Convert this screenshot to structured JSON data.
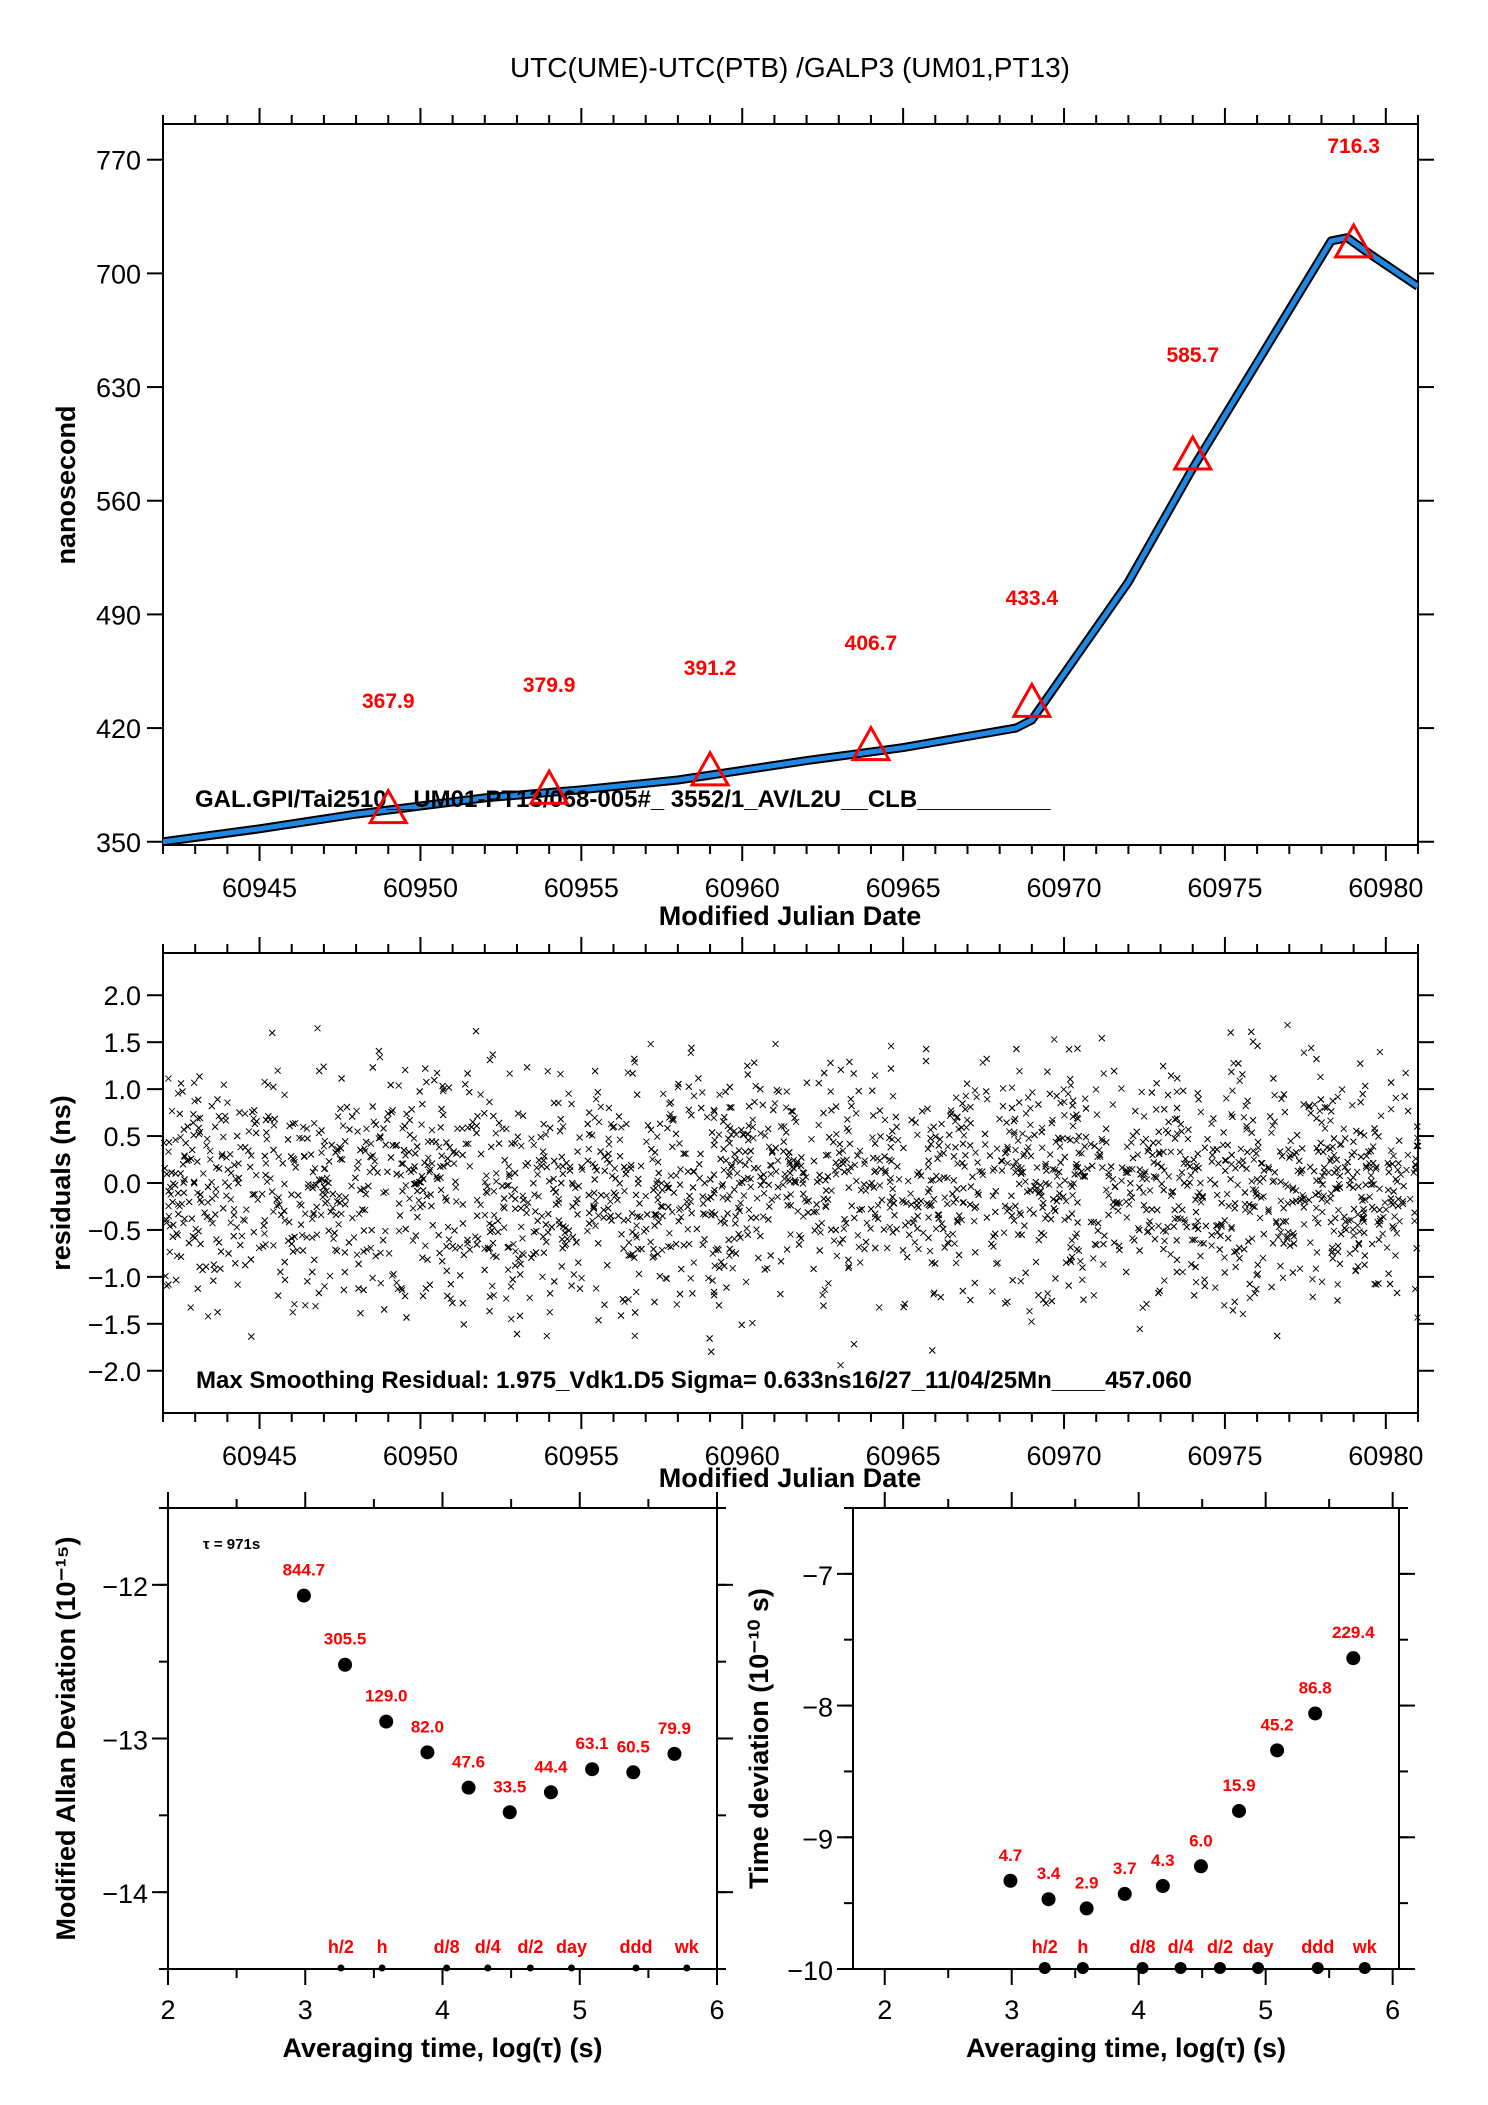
{
  "title": "UTC(UME)-UTC(PTB)  /GALP3  (UM01,PT13)",
  "colors": {
    "series_line": "#1e88e5",
    "marker": "#ff0000",
    "label": "#ff0000",
    "axis": "#000000"
  },
  "chart_data": [
    {
      "id": "time-offset",
      "type": "line",
      "title": "UTC(UME)-UTC(PTB)  /GALP3  (UM01,PT13)",
      "xlabel": "Modified Julian Date",
      "ylabel": "nanosecond",
      "xlim": [
        60942,
        60981
      ],
      "ylim": [
        348,
        792
      ],
      "xticks": [
        60945,
        60950,
        60955,
        60960,
        60965,
        60970,
        60975,
        60980
      ],
      "yticks": [
        350,
        420,
        490,
        560,
        630,
        700,
        770
      ],
      "annotation": "GAL.GPI/Tai2510__UM01-PT13/068-005#_  3552/1_AV/L2U__CLB__________",
      "series": [
        {
          "name": "smoothed",
          "x": [
            60942,
            60945,
            60948,
            60950,
            60952,
            60955,
            60958,
            60960,
            60962,
            60965,
            60968.5,
            60969,
            60972,
            60974,
            60976,
            60978.3,
            60978.8,
            60979.5,
            60981
          ],
          "y": [
            350,
            358,
            367,
            372,
            377,
            382,
            388,
            394,
            400,
            408,
            420,
            425,
            510,
            580,
            645,
            720,
            722,
            712,
            692
          ]
        }
      ],
      "markers": [
        {
          "x": 60949,
          "y": 367.9,
          "label": "367.9"
        },
        {
          "x": 60954,
          "y": 379.9,
          "label": "379.9"
        },
        {
          "x": 60959,
          "y": 391.2,
          "label": "391.2"
        },
        {
          "x": 60964,
          "y": 406.7,
          "label": "406.7"
        },
        {
          "x": 60969,
          "y": 433.4,
          "label": "433.4"
        },
        {
          "x": 60974,
          "y": 585.7,
          "label": "585.7"
        },
        {
          "x": 60979,
          "y": 716.3,
          "label": "716.3"
        }
      ],
      "grid": false
    },
    {
      "id": "residuals",
      "type": "scatter",
      "xlabel": "Modified Julian Date",
      "ylabel": "residuals (ns)",
      "xlim": [
        60942,
        60981
      ],
      "ylim": [
        -2.45,
        2.45
      ],
      "xticks": [
        60945,
        60950,
        60955,
        60960,
        60965,
        60970,
        60975,
        60980
      ],
      "yticks": [
        -2.0,
        -1.5,
        -1.0,
        -0.5,
        0.0,
        0.5,
        1.0,
        1.5,
        2.0
      ],
      "ytick_labels": [
        "−2.0",
        "−1.5",
        "−1.0",
        "−0.5",
        "0.0",
        "0.5",
        "1.0",
        "1.5",
        "2.0"
      ],
      "annotation": "Max Smoothing Residual: 1.975_Vdk1.D5  Sigma= 0.633ns16/27_11/04/25Mn____457.060",
      "summary": {
        "max_residual_ns": 1.975,
        "sigma_ns": 0.633,
        "n_points_approx": 3700,
        "x_range": [
          60942,
          60981
        ]
      },
      "marker": "x",
      "grid": false
    },
    {
      "id": "mod-allan-deviation",
      "type": "scatter",
      "xlabel": "Averaging time, log(τ) (s)",
      "ylabel": "Modified Allan Deviation (10⁻¹⁵)",
      "xlim": [
        2,
        6
      ],
      "ylim": [
        -14.5,
        -11.5
      ],
      "xticks": [
        2,
        3,
        4,
        5,
        6
      ],
      "yticks": [
        -14,
        -13,
        -12
      ],
      "ytick_labels": [
        "−14",
        "−13",
        "−12"
      ],
      "tau0_label": "τ = 971s",
      "points": [
        {
          "x": 2.99,
          "y": -12.07,
          "label": "844.7"
        },
        {
          "x": 3.29,
          "y": -12.52,
          "label": "305.5"
        },
        {
          "x": 3.59,
          "y": -12.89,
          "label": "129.0"
        },
        {
          "x": 3.89,
          "y": -13.09,
          "label": "82.0"
        },
        {
          "x": 4.19,
          "y": -13.32,
          "label": "47.6"
        },
        {
          "x": 4.49,
          "y": -13.48,
          "label": "33.5"
        },
        {
          "x": 4.79,
          "y": -13.35,
          "label": "44.4"
        },
        {
          "x": 5.09,
          "y": -13.2,
          "label": "63.1"
        },
        {
          "x": 5.39,
          "y": -13.22,
          "label": "60.5"
        },
        {
          "x": 5.69,
          "y": -13.1,
          "label": "79.9"
        }
      ],
      "time_markers": [
        {
          "x": 3.26,
          "label": "h/2"
        },
        {
          "x": 3.56,
          "label": "h"
        },
        {
          "x": 4.03,
          "label": "d/8"
        },
        {
          "x": 4.33,
          "label": "d/4"
        },
        {
          "x": 4.64,
          "label": "d/2"
        },
        {
          "x": 4.94,
          "label": "day"
        },
        {
          "x": 5.41,
          "label": "ddd"
        },
        {
          "x": 5.78,
          "label": "wk"
        }
      ],
      "grid": false
    },
    {
      "id": "time-deviation",
      "type": "scatter",
      "xlabel": "Averaging time, log(τ) (s)",
      "ylabel": "Time deviation (10⁻¹⁰ s)",
      "xlim": [
        1.75,
        6.05
      ],
      "ylim": [
        -10,
        -6.5
      ],
      "xticks": [
        2,
        3,
        4,
        5,
        6
      ],
      "yticks": [
        -10,
        -9,
        -8,
        -7
      ],
      "ytick_labels": [
        "−10",
        "−9",
        "−8",
        "−7"
      ],
      "points": [
        {
          "x": 2.99,
          "y": -9.33,
          "label": "4.7"
        },
        {
          "x": 3.29,
          "y": -9.47,
          "label": "3.4"
        },
        {
          "x": 3.59,
          "y": -9.54,
          "label": "2.9"
        },
        {
          "x": 3.89,
          "y": -9.43,
          "label": "3.7"
        },
        {
          "x": 4.19,
          "y": -9.37,
          "label": "4.3"
        },
        {
          "x": 4.49,
          "y": -9.22,
          "label": "6.0"
        },
        {
          "x": 4.79,
          "y": -8.8,
          "label": "15.9"
        },
        {
          "x": 5.09,
          "y": -8.34,
          "label": "45.2"
        },
        {
          "x": 5.39,
          "y": -8.06,
          "label": "86.8"
        },
        {
          "x": 5.69,
          "y": -7.64,
          "label": "229.4"
        }
      ],
      "time_markers": [
        {
          "x": 3.26,
          "label": "h/2"
        },
        {
          "x": 3.56,
          "label": "h"
        },
        {
          "x": 4.03,
          "label": "d/8"
        },
        {
          "x": 4.33,
          "label": "d/4"
        },
        {
          "x": 4.64,
          "label": "d/2"
        },
        {
          "x": 4.94,
          "label": "day"
        },
        {
          "x": 5.41,
          "label": "ddd"
        },
        {
          "x": 5.78,
          "label": "wk"
        }
      ],
      "grid": false
    }
  ]
}
